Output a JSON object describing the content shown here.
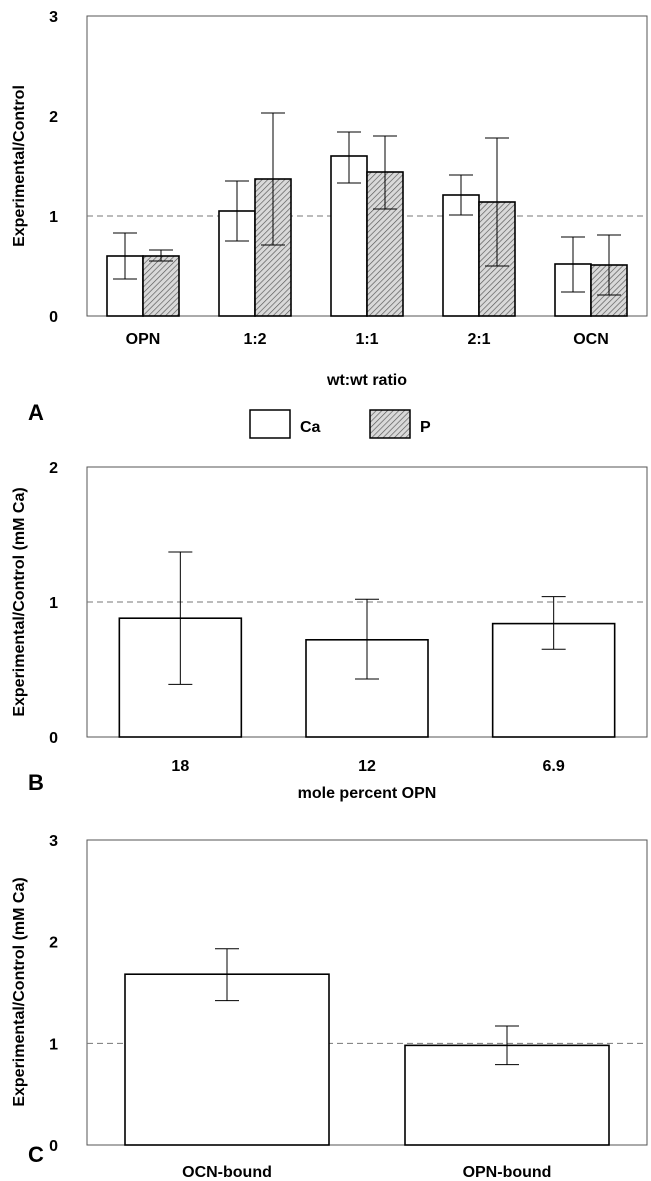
{
  "chart_data": [
    {
      "panel_label": "A",
      "type": "bar",
      "ylabel": "Experimental/Control",
      "xlabel": "wt:wt ratio",
      "ylim": [
        0,
        3
      ],
      "yticks": [
        "0",
        "1",
        "2",
        "3"
      ],
      "reference_line": 1,
      "categories": [
        "OPN",
        "1:2",
        "1:1",
        "2:1",
        "OCN"
      ],
      "legend": {
        "position": "bottom",
        "entries": [
          "Ca",
          "P"
        ]
      },
      "series": [
        {
          "name": "Ca",
          "fill": "#ffffff",
          "values": [
            0.6,
            1.05,
            1.6,
            1.21,
            0.52
          ],
          "err_low": [
            0.37,
            0.75,
            1.33,
            1.01,
            0.24
          ],
          "err_high": [
            0.83,
            1.35,
            1.84,
            1.41,
            0.79
          ]
        },
        {
          "name": "P",
          "fill": "hatch",
          "values": [
            0.6,
            1.37,
            1.44,
            1.14,
            0.51
          ],
          "err_low": [
            0.55,
            0.71,
            1.07,
            0.5,
            0.21
          ],
          "err_high": [
            0.66,
            2.03,
            1.8,
            1.78,
            0.81
          ]
        }
      ]
    },
    {
      "panel_label": "B",
      "type": "bar",
      "ylabel": "Experimental/Control (mM Ca)",
      "xlabel": "mole percent OPN",
      "ylim": [
        0,
        2
      ],
      "yticks": [
        "0",
        "1",
        "2"
      ],
      "reference_line": 1,
      "categories": [
        "18",
        "12",
        "6.9"
      ],
      "series": [
        {
          "values": [
            0.88,
            0.72,
            0.84
          ],
          "err_low": [
            0.39,
            0.43,
            0.65
          ],
          "err_high": [
            1.37,
            1.02,
            1.04
          ]
        }
      ]
    },
    {
      "panel_label": "C",
      "type": "bar",
      "ylabel": "Experimental/Control (mM Ca)",
      "xlabel": "",
      "ylim": [
        0,
        3
      ],
      "yticks": [
        "0",
        "1",
        "2",
        "3"
      ],
      "reference_line": 1,
      "categories": [
        "OCN-bound",
        "OPN-bound"
      ],
      "series": [
        {
          "values": [
            1.68,
            0.98
          ],
          "err_low": [
            1.42,
            0.79
          ],
          "err_high": [
            1.93,
            1.17
          ]
        }
      ]
    }
  ]
}
